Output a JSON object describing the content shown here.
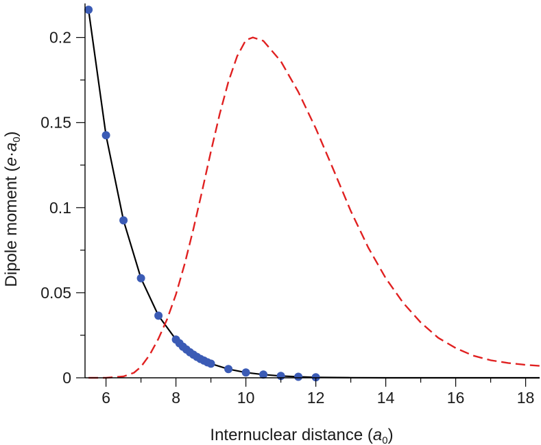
{
  "chart_data": {
    "type": "line",
    "xlabel": {
      "text": "Internuclear distance (",
      "italic": "a",
      "sub": "0",
      "close": ")"
    },
    "ylabel": {
      "text": "Dipole moment (",
      "italic1": "e",
      "dot": "·",
      "italic2": "a",
      "sub": "0",
      "close": ")"
    },
    "xlim": [
      5.4,
      18.4
    ],
    "ylim": [
      0,
      0.22
    ],
    "x_major_ticks": [
      6,
      8,
      10,
      12,
      14,
      16,
      18
    ],
    "x_minor_ticks": [
      7,
      9,
      11,
      13,
      15,
      17
    ],
    "x_tick_labels": [
      "6",
      "8",
      "10",
      "12",
      "14",
      "16",
      "18"
    ],
    "y_major_ticks": [
      0,
      0.05,
      0.1,
      0.15,
      0.2
    ],
    "y_minor_ticks": [
      0.025,
      0.075,
      0.125,
      0.175
    ],
    "y_tick_labels": [
      "0",
      "0.05",
      "0.1",
      "0.15",
      "0.2"
    ],
    "grid": false,
    "series": [
      {
        "style": "points",
        "color": "#3b5bb5",
        "x": [
          5.5,
          6.0,
          6.5,
          7.0,
          7.5,
          8.0,
          8.1,
          8.2,
          8.3,
          8.4,
          8.5,
          8.6,
          8.7,
          8.8,
          8.9,
          9.0,
          9.5,
          10.0,
          10.5,
          11.0,
          11.5,
          12.0
        ],
        "y": [
          0.2163,
          0.1425,
          0.0925,
          0.0585,
          0.0365,
          0.0225,
          0.0203,
          0.0183,
          0.0166,
          0.015,
          0.0136,
          0.0123,
          0.0111,
          0.0101,
          0.0091,
          0.0083,
          0.0051,
          0.0031,
          0.0019,
          0.0011,
          0.0006,
          0.0003
        ]
      },
      {
        "style": "solid",
        "color": "#000000",
        "x": [
          5.5,
          6.0,
          6.5,
          7.0,
          7.5,
          8.0,
          8.5,
          9.0,
          9.5,
          10.0,
          10.5,
          11.0,
          11.5,
          12.0,
          13.0,
          14.0,
          16.0,
          18.4
        ],
        "y": [
          0.2163,
          0.1425,
          0.0925,
          0.0585,
          0.0365,
          0.0225,
          0.0136,
          0.0083,
          0.0051,
          0.0031,
          0.0019,
          0.0011,
          0.0006,
          0.0003,
          0.0001,
          0.0,
          0.0,
          0.0
        ]
      },
      {
        "style": "dashed",
        "color": "#e02020",
        "x": [
          5.5,
          6.0,
          6.5,
          6.8,
          7.0,
          7.25,
          7.5,
          7.75,
          8.0,
          8.25,
          8.5,
          8.75,
          9.0,
          9.25,
          9.5,
          9.75,
          10.0,
          10.2,
          10.5,
          11.0,
          11.5,
          12.0,
          12.5,
          13.0,
          13.5,
          14.0,
          14.5,
          15.0,
          15.5,
          16.0,
          16.5,
          17.0,
          17.5,
          18.0,
          18.4
        ],
        "y": [
          0.0,
          0.0,
          0.0008,
          0.003,
          0.0065,
          0.0135,
          0.023,
          0.0345,
          0.049,
          0.067,
          0.0875,
          0.11,
          0.133,
          0.155,
          0.174,
          0.189,
          0.1985,
          0.2,
          0.198,
          0.186,
          0.168,
          0.1465,
          0.1225,
          0.098,
          0.0765,
          0.0585,
          0.044,
          0.0325,
          0.0235,
          0.0175,
          0.013,
          0.0103,
          0.0087,
          0.0076,
          0.007
        ]
      }
    ]
  }
}
